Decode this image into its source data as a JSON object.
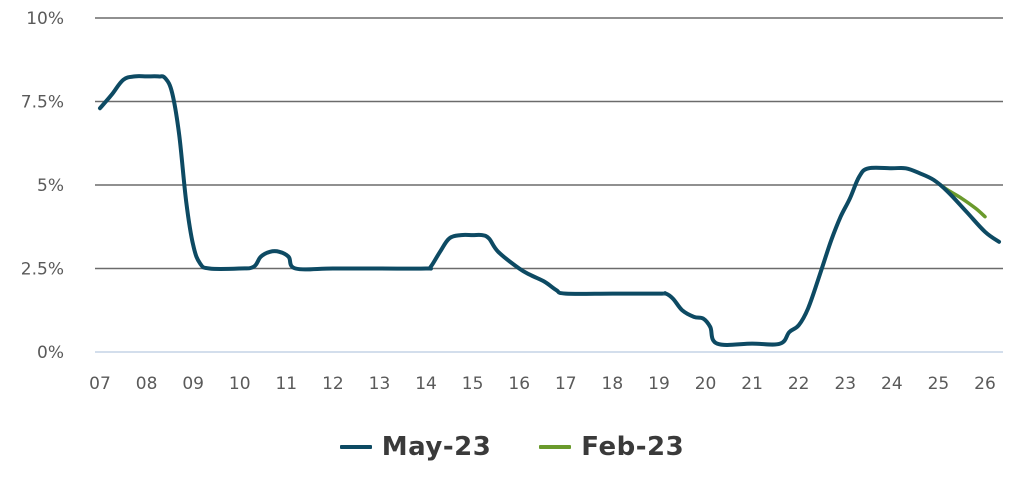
{
  "chart_data": {
    "type": "line",
    "x_tick_labels": [
      "07",
      "08",
      "09",
      "10",
      "11",
      "12",
      "13",
      "14",
      "15",
      "16",
      "17",
      "18",
      "19",
      "20",
      "21",
      "22",
      "23",
      "24",
      "25",
      "26"
    ],
    "y_tick_labels": [
      "0%",
      "2.5%",
      "5%",
      "7.5%",
      "10%"
    ],
    "y_ticks": [
      0,
      2.5,
      5,
      7.5,
      10
    ],
    "xlim": [
      2007,
      2026.35
    ],
    "ylim": [
      0,
      10
    ],
    "grid": true,
    "legend_position": "bottom-center",
    "series": [
      {
        "name": "May-23",
        "color": "#0d4a63",
        "points": [
          [
            2007.0,
            7.3
          ],
          [
            2007.25,
            7.7
          ],
          [
            2007.5,
            8.15
          ],
          [
            2007.75,
            8.25
          ],
          [
            2008.0,
            8.25
          ],
          [
            2008.25,
            8.25
          ],
          [
            2008.4,
            8.2
          ],
          [
            2008.55,
            7.75
          ],
          [
            2008.7,
            6.5
          ],
          [
            2008.85,
            4.5
          ],
          [
            2009.0,
            3.2
          ],
          [
            2009.15,
            2.65
          ],
          [
            2009.35,
            2.5
          ],
          [
            2010.0,
            2.5
          ],
          [
            2010.3,
            2.55
          ],
          [
            2010.45,
            2.85
          ],
          [
            2010.65,
            3.0
          ],
          [
            2010.85,
            3.0
          ],
          [
            2011.05,
            2.85
          ],
          [
            2011.2,
            2.5
          ],
          [
            2012.0,
            2.5
          ],
          [
            2013.0,
            2.5
          ],
          [
            2014.0,
            2.5
          ],
          [
            2014.1,
            2.55
          ],
          [
            2014.3,
            3.0
          ],
          [
            2014.5,
            3.4
          ],
          [
            2014.75,
            3.5
          ],
          [
            2015.0,
            3.5
          ],
          [
            2015.2,
            3.5
          ],
          [
            2015.35,
            3.4
          ],
          [
            2015.55,
            3.0
          ],
          [
            2016.0,
            2.5
          ],
          [
            2016.25,
            2.3
          ],
          [
            2016.55,
            2.1
          ],
          [
            2016.8,
            1.85
          ],
          [
            2017.0,
            1.75
          ],
          [
            2018.0,
            1.75
          ],
          [
            2019.0,
            1.75
          ],
          [
            2019.15,
            1.75
          ],
          [
            2019.3,
            1.6
          ],
          [
            2019.5,
            1.25
          ],
          [
            2019.75,
            1.05
          ],
          [
            2019.95,
            1.0
          ],
          [
            2020.1,
            0.75
          ],
          [
            2020.25,
            0.25
          ],
          [
            2021.0,
            0.25
          ],
          [
            2021.6,
            0.25
          ],
          [
            2021.8,
            0.6
          ],
          [
            2022.0,
            0.8
          ],
          [
            2022.2,
            1.3
          ],
          [
            2022.45,
            2.3
          ],
          [
            2022.7,
            3.35
          ],
          [
            2022.9,
            4.05
          ],
          [
            2023.1,
            4.6
          ],
          [
            2023.3,
            5.25
          ],
          [
            2023.5,
            5.5
          ],
          [
            2024.0,
            5.5
          ],
          [
            2024.3,
            5.5
          ],
          [
            2024.6,
            5.35
          ],
          [
            2024.9,
            5.15
          ],
          [
            2025.2,
            4.8
          ],
          [
            2025.6,
            4.2
          ],
          [
            2026.0,
            3.6
          ],
          [
            2026.3,
            3.3
          ]
        ]
      },
      {
        "name": "Feb-23",
        "color": "#6a9a2c",
        "points": [
          [
            2024.9,
            5.15
          ],
          [
            2025.2,
            4.85
          ],
          [
            2025.5,
            4.6
          ],
          [
            2025.8,
            4.3
          ],
          [
            2026.0,
            4.05
          ]
        ]
      }
    ]
  }
}
